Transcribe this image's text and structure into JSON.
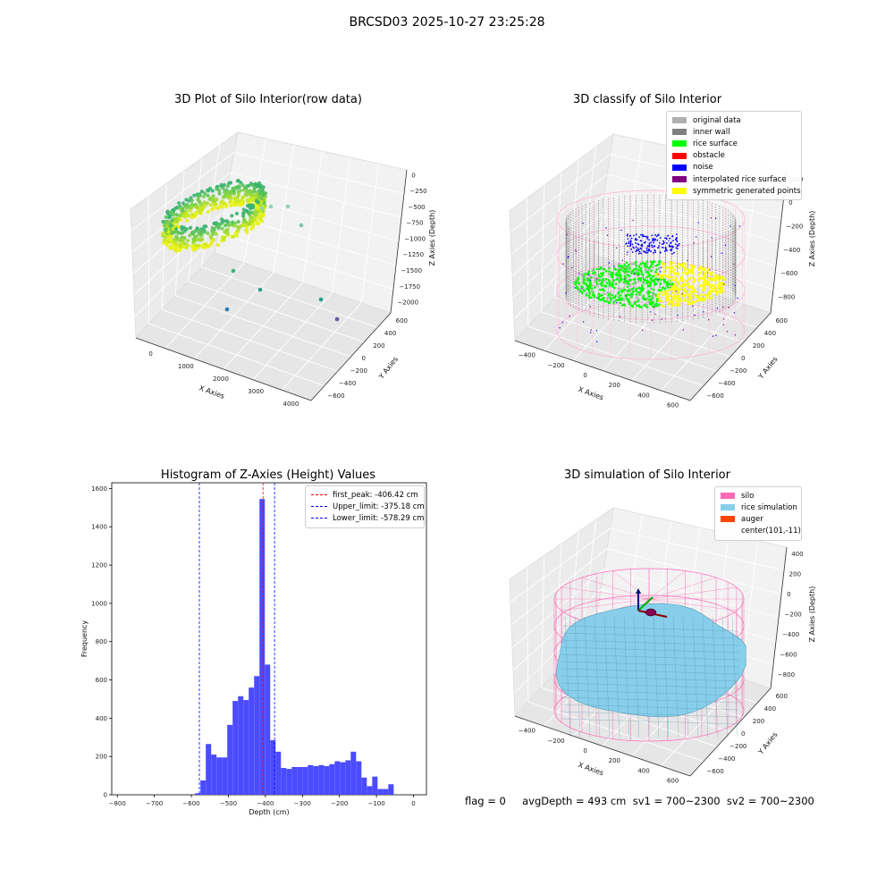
{
  "suptitle": "BRCSD03 2025-10-27 23:25:28",
  "footer": "flag = 0     avgDepth = 493 cm  sv1 = 700~2300  sv2 = 700~2300",
  "chart_data": [
    {
      "type": "scatter",
      "title": "3D Plot of Silo Interior(row data)",
      "xlabel": "X Axies",
      "ylabel": "Y Axies",
      "zlabel": "Z Axies (Depth)",
      "xticks": [
        "0",
        "1000",
        "2000",
        "3000",
        "4000"
      ],
      "yticks": [
        "600",
        "400",
        "200",
        "0",
        "−200",
        "−400",
        "−600"
      ],
      "zticks": [
        "0",
        "−250",
        "−500",
        "−750",
        "−1000",
        "−1250",
        "−1500",
        "−1750",
        "−2000"
      ],
      "outliers": [
        {
          "x": 1500,
          "y": 300,
          "z": -200
        },
        {
          "x": 1800,
          "y": 150,
          "z": -350
        },
        {
          "x": 2400,
          "y": 100,
          "z": -300
        },
        {
          "x": 2700,
          "y": 50,
          "z": -600
        },
        {
          "x": 1300,
          "y": 400,
          "z": -1400
        },
        {
          "x": 1900,
          "y": 0,
          "z": -1600
        },
        {
          "x": 3400,
          "y": -300,
          "z": -1500
        },
        {
          "x": 1100,
          "y": -100,
          "z": -1900
        },
        {
          "x": 3800,
          "y": -500,
          "z": -1700
        }
      ]
    },
    {
      "type": "scatter",
      "title": "3D classify of Silo Interior",
      "xlabel": "X Axies",
      "ylabel": "Y Axies",
      "zlabel": "Z Axies (Depth)",
      "xticks": [
        "−400",
        "−200",
        "0",
        "200",
        "400",
        "600"
      ],
      "yticks": [
        "600",
        "400",
        "200",
        "0",
        "−200",
        "−400",
        "−600"
      ],
      "zticks": [
        "200",
        "0",
        "−200",
        "−400",
        "−600",
        "−800"
      ],
      "legend": [
        {
          "label": "original data",
          "color": "#b0b0b0"
        },
        {
          "label": "inner wall",
          "color": "#808080"
        },
        {
          "label": "rice surface",
          "color": "#00ff00"
        },
        {
          "label": "obstacle",
          "color": "#ff0000"
        },
        {
          "label": "noise",
          "color": "#0000ff"
        },
        {
          "label": "interpolated rice surface",
          "color": "#800080"
        },
        {
          "label": "symmetric generated points",
          "color": "#ffff00"
        }
      ]
    },
    {
      "type": "bar",
      "title": "Histogram of Z-Axies (Height) Values",
      "xlabel": "Depth (cm)",
      "ylabel": "Frequency",
      "xlim": [
        -815,
        35
      ],
      "ylim": [
        0,
        1630
      ],
      "xticks": [
        -800,
        -700,
        -600,
        -500,
        -400,
        -300,
        -200,
        -100,
        0
      ],
      "yticks": [
        0,
        200,
        400,
        600,
        800,
        1000,
        1200,
        1400,
        1600
      ],
      "bin_width": 14.5,
      "bin_start": -590,
      "values": [
        8,
        75,
        265,
        210,
        195,
        195,
        365,
        490,
        515,
        495,
        560,
        620,
        1545,
        680,
        285,
        225,
        140,
        135,
        145,
        145,
        145,
        155,
        150,
        155,
        150,
        160,
        175,
        170,
        180,
        225,
        175,
        90,
        45,
        95,
        30,
        30,
        55
      ],
      "bar_color": "#4b4bff",
      "lines": [
        {
          "label": "first_peak: -406.42 cm",
          "x": -406.42,
          "color": "#ff0000"
        },
        {
          "label": "Upper_limit: -375.18 cm",
          "x": -375.18,
          "color": "#0000ff"
        },
        {
          "label": "Lower_limit: -578.29 cm",
          "x": -578.29,
          "color": "#0000ff"
        }
      ]
    },
    {
      "type": "area",
      "title": "3D simulation of Silo Interior",
      "xlabel": "X Axies",
      "ylabel": "Y Axies",
      "zlabel": "Z Axies (Depth)",
      "xticks": [
        "−400",
        "−200",
        "0",
        "200",
        "400",
        "600"
      ],
      "yticks": [
        "600",
        "400",
        "200",
        "0",
        "−200",
        "−400",
        "−600"
      ],
      "zticks": [
        "400",
        "200",
        "0",
        "−200",
        "−400",
        "−600",
        "−800"
      ],
      "legend": [
        {
          "label": "silo",
          "color": "#ff69b4"
        },
        {
          "label": "rice simulation",
          "color": "#87ceeb"
        },
        {
          "label": "auger",
          "color": "#ff4500"
        },
        {
          "label": "center(101,-11)",
          "color": ""
        }
      ]
    }
  ]
}
